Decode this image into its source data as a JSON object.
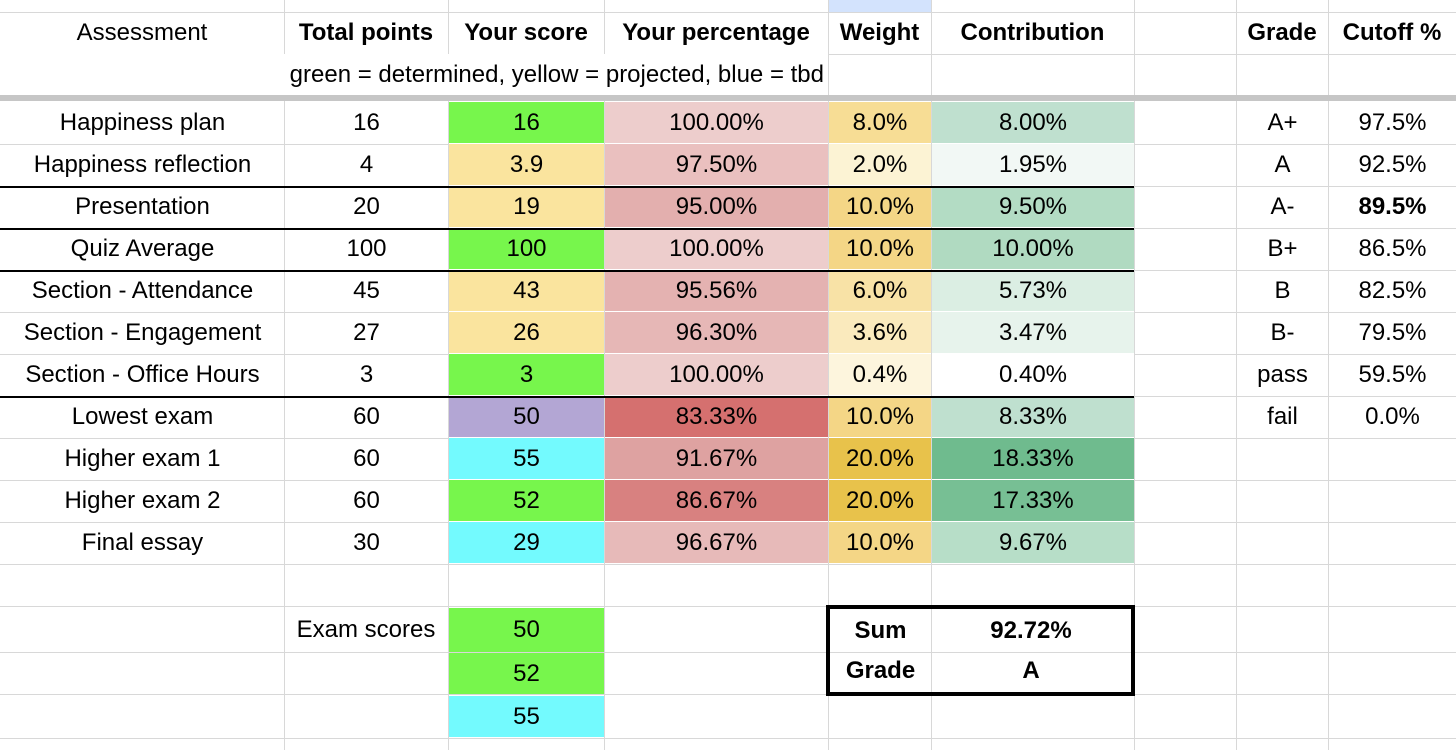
{
  "headers": {
    "assessment": "Assessment",
    "total_points": "Total points",
    "your_score": "Your score",
    "your_percentage": "Your percentage",
    "weight": "Weight",
    "contribution": "Contribution",
    "grade": "Grade",
    "cutoff": "Cutoff %"
  },
  "legend_text": "green = determined, yellow = projected, blue = tbd",
  "rows": [
    {
      "name": "Happiness plan",
      "total": "16",
      "score": "16",
      "pct": "100.00%",
      "weight": "8.0%",
      "contrib": "8.00%",
      "score_color": "#77f64c",
      "pct_color": "#edcdcc",
      "weight_color": "#f7dd95",
      "contrib_color": "#bfe0cf"
    },
    {
      "name": "Happiness reflection",
      "total": "4",
      "score": "3.9",
      "pct": "97.50%",
      "weight": "2.0%",
      "contrib": "1.95%",
      "score_color": "#fae49e",
      "pct_color": "#eac0bf",
      "weight_color": "#fcf3d4",
      "contrib_color": "#f2f8f5"
    },
    {
      "name": "Presentation",
      "total": "20",
      "score": "19",
      "pct": "95.00%",
      "weight": "10.0%",
      "contrib": "9.50%",
      "score_color": "#fae49e",
      "pct_color": "#e3afae",
      "weight_color": "#f4d686",
      "contrib_color": "#b3dcc4"
    },
    {
      "name": "Quiz Average",
      "total": "100",
      "score": "100",
      "pct": "100.00%",
      "weight": "10.0%",
      "contrib": "10.00%",
      "score_color": "#77f64c",
      "pct_color": "#edcdcc",
      "weight_color": "#f4d686",
      "contrib_color": "#b0dac1"
    },
    {
      "name": "Section - Attendance",
      "total": "45",
      "score": "43",
      "pct": "95.56%",
      "weight": "6.0%",
      "contrib": "5.73%",
      "score_color": "#fae49e",
      "pct_color": "#e4b2b1",
      "weight_color": "#f8e2a6",
      "contrib_color": "#dbeee3"
    },
    {
      "name": "Section - Engagement",
      "total": "27",
      "score": "26",
      "pct": "96.30%",
      "weight": "3.6%",
      "contrib": "3.47%",
      "score_color": "#fae49e",
      "pct_color": "#e6b7b6",
      "weight_color": "#faeabd",
      "contrib_color": "#e7f3ec"
    },
    {
      "name": "Section - Office Hours",
      "total": "3",
      "score": "3",
      "pct": "100.00%",
      "weight": "0.4%",
      "contrib": "0.40%",
      "score_color": "#77f64c",
      "pct_color": "#edcdcc",
      "weight_color": "#fdf5dd",
      "contrib_color": "#ffffff"
    },
    {
      "name": "Lowest exam",
      "total": "60",
      "score": "50",
      "pct": "83.33%",
      "weight": "10.0%",
      "contrib": "8.33%",
      "score_color": "#b3a6d4",
      "pct_color": "#d5706f",
      "weight_color": "#f4d686",
      "contrib_color": "#bfe0cf"
    },
    {
      "name": "Higher exam 1",
      "total": "60",
      "score": "55",
      "pct": "91.67%",
      "weight": "20.0%",
      "contrib": "18.33%",
      "score_color": "#73fafe",
      "pct_color": "#dea2a1",
      "weight_color": "#e8c24b",
      "contrib_color": "#6fbb8e"
    },
    {
      "name": "Higher exam 2",
      "total": "60",
      "score": "52",
      "pct": "86.67%",
      "weight": "20.0%",
      "contrib": "17.33%",
      "score_color": "#77f64c",
      "pct_color": "#d88180",
      "weight_color": "#e8c24b",
      "contrib_color": "#77bf94"
    },
    {
      "name": "Final essay",
      "total": "30",
      "score": "29",
      "pct": "96.67%",
      "weight": "10.0%",
      "contrib": "9.67%",
      "score_color": "#73fafe",
      "pct_color": "#e7bab9",
      "weight_color": "#f4d686",
      "contrib_color": "#b7dec8"
    }
  ],
  "exam_scores_label": "Exam scores",
  "exam_scores": [
    {
      "value": "50",
      "color": "#77f64c"
    },
    {
      "value": "52",
      "color": "#77f64c"
    },
    {
      "value": "55",
      "color": "#73fafe"
    }
  ],
  "summary": {
    "sum_label": "Sum",
    "sum_value": "92.72%",
    "grade_label": "Grade",
    "grade_value": "A"
  },
  "grade_table": [
    {
      "grade": "A+",
      "cutoff": "97.5%",
      "bold": false
    },
    {
      "grade": "A",
      "cutoff": "92.5%",
      "bold": false
    },
    {
      "grade": "A-",
      "cutoff": "89.5%",
      "bold": true
    },
    {
      "grade": "B+",
      "cutoff": "86.5%",
      "bold": false
    },
    {
      "grade": "B",
      "cutoff": "82.5%",
      "bold": false
    },
    {
      "grade": "B-",
      "cutoff": "79.5%",
      "bold": false
    },
    {
      "grade": "pass",
      "cutoff": "59.5%",
      "bold": false
    },
    {
      "grade": "fail",
      "cutoff": "0.0%",
      "bold": false
    }
  ]
}
